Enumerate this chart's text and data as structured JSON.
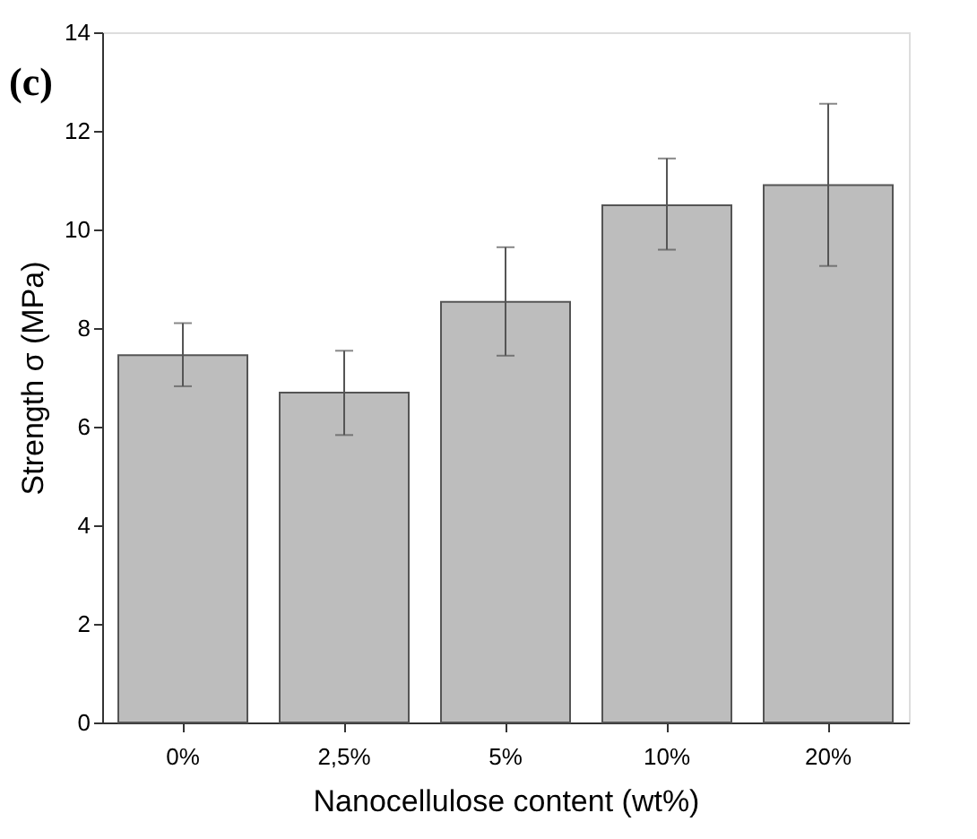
{
  "chart_data": {
    "type": "bar",
    "categories": [
      "0%",
      "2,5%",
      "5%",
      "10%",
      "20%"
    ],
    "values": [
      7.45,
      6.69,
      8.53,
      10.49,
      10.9
    ],
    "errors": [
      [
        6.82,
        8.1
      ],
      [
        5.83,
        7.54
      ],
      [
        7.44,
        9.64
      ],
      [
        9.59,
        11.44
      ],
      [
        9.26,
        12.55
      ]
    ],
    "color": "#bdbdbd",
    "xlabel": "Nanocellulose content (wt%)",
    "ylabel": "Strength σ (MPa)",
    "ylim": [
      0,
      14
    ],
    "yticks": [
      0,
      2,
      4,
      6,
      8,
      10,
      12,
      14
    ],
    "annotations": [
      "(c)"
    ],
    "grid": false
  }
}
